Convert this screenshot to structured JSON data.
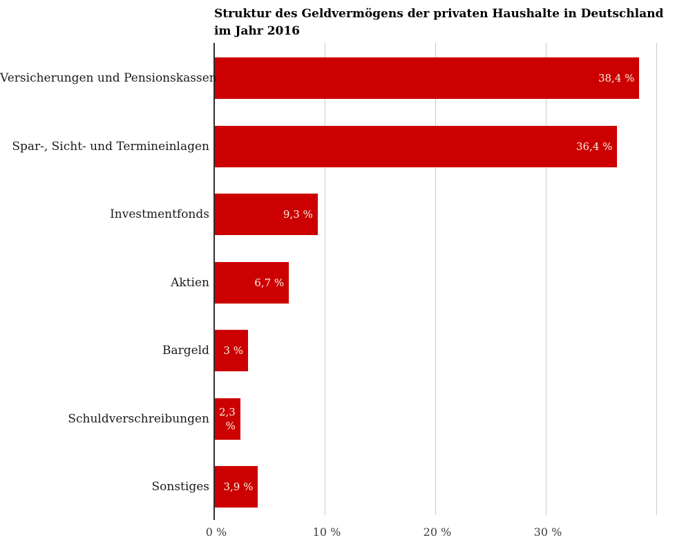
{
  "header": {
    "title_line1": "Struktur des Geldvermögens der privaten Haushalte in Deutschland",
    "title_line2": "im Jahr 2016"
  },
  "colors": {
    "background": "#ffffff",
    "bar": "#cc0000",
    "value_label": "#fbf2e2",
    "gridline": "#c9c9c9",
    "axis_line": "#2e2e2e",
    "category_label": "#1a1a1a",
    "tick_label": "#3d3d3d",
    "title": "#000000"
  },
  "chart_data": {
    "type": "bar",
    "orientation": "horizontal",
    "title": "Struktur des Geldvermögens der privaten Haushalte in Deutschland im Jahr 2016",
    "categories": [
      "Versicherungen und Pensionskassen",
      "Spar-, Sicht- und Termineinlagen",
      "Investmentfonds",
      "Aktien",
      "Bargeld",
      "Schuldverschreibungen",
      "Sonstiges"
    ],
    "values": [
      38.4,
      36.4,
      9.3,
      6.7,
      3,
      2.3,
      3.9
    ],
    "value_labels": [
      "38,4 %",
      "36,4 %",
      "9,3 %",
      "6,7 %",
      "3 %",
      "2,3 %",
      "3,9 %"
    ],
    "unit": "%",
    "xlabel": "",
    "ylabel": "",
    "xlim": [
      0,
      40
    ],
    "x_ticks": [
      {
        "value": 0,
        "label": "0 %"
      },
      {
        "value": 10,
        "label": "10 %"
      },
      {
        "value": 20,
        "label": "20 %"
      },
      {
        "value": 30,
        "label": "30 %"
      },
      {
        "value": 40,
        "label": ""
      }
    ],
    "grid": "vertical gridlines on, horizontal off",
    "legend": "none"
  }
}
